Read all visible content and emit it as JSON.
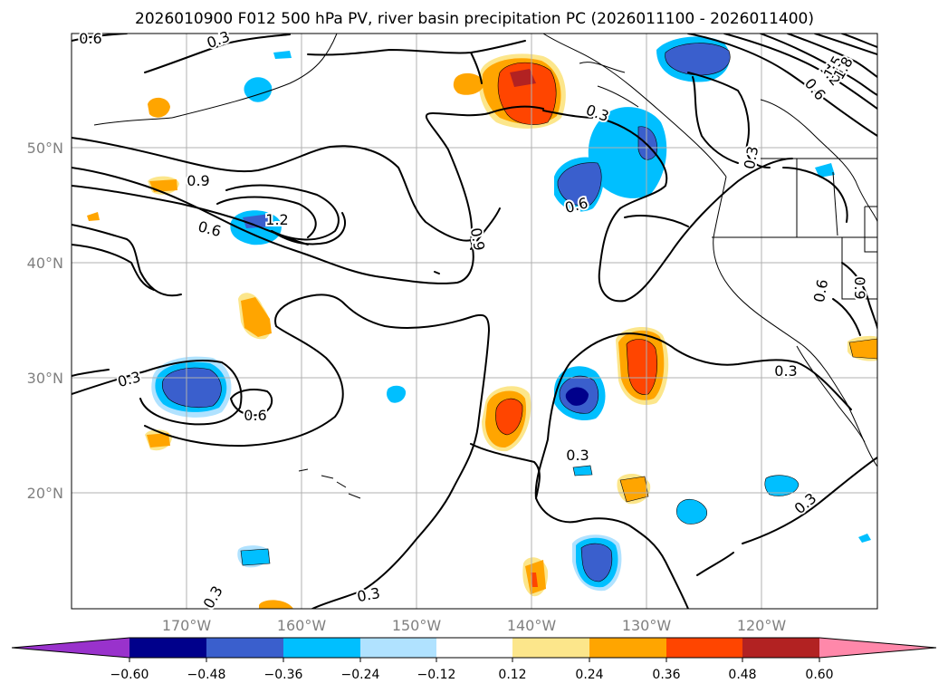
{
  "title": "2026010900 F012 500 hPa PV, river basin precipitation PC (2026011100 - 2026011400)",
  "longitude_labels": [
    "170°W",
    "160°W",
    "150°W",
    "140°W",
    "130°W",
    "120°W"
  ],
  "latitude_labels": [
    "50°N",
    "40°N",
    "30°N",
    "20°N"
  ],
  "colorbar": {
    "ticks": [
      "−0.60",
      "−0.48",
      "−0.36",
      "−0.24",
      "−0.12",
      "0.12",
      "0.24",
      "0.36",
      "0.48",
      "0.60"
    ],
    "colors": [
      "#9932cc",
      "#00008b",
      "#3a5fcd",
      "#00bfff",
      "#b0e2ff",
      "#ffffff",
      "#fce68b",
      "#ffa500",
      "#ff4500",
      "#b22222",
      "#ff88aa"
    ]
  },
  "contour_labels": {
    "c03_a": "0.3",
    "c03_b": "0.3",
    "c03_c": "0.3",
    "c03_d": "0.3",
    "c03_e": "0.3",
    "c03_f": "0.3",
    "c03_g": "0.3",
    "c03_h": "0.3",
    "c06_a": "0.6",
    "c06_b": "0.6",
    "c06_c": "0.6",
    "c06_d": "0.6",
    "c06_e": "0.6",
    "c06_f": "0.6",
    "c09_a": "0.9",
    "c09_b": "0.9",
    "c12_a": "1.2",
    "c12_b": "1.2",
    "c15": "1.5",
    "c18": "1.8"
  }
}
